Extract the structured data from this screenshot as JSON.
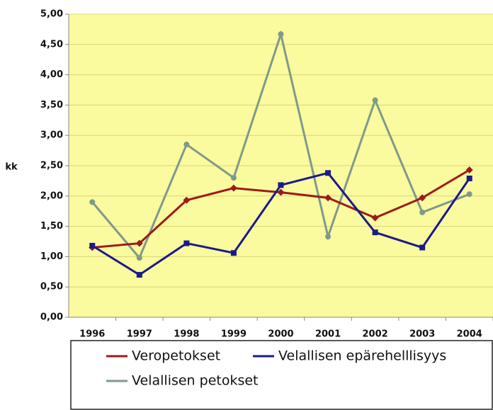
{
  "chart_data": {
    "type": "line",
    "y_label": "kk",
    "categories": [
      "1996",
      "1997",
      "1998",
      "1999",
      "2000",
      "2001",
      "2002",
      "2003",
      "2004"
    ],
    "series": [
      {
        "name": "Veropetokset",
        "color": "#9b1b1b",
        "values": [
          1.15,
          1.22,
          1.93,
          2.13,
          2.06,
          1.97,
          1.64,
          1.97,
          2.43
        ]
      },
      {
        "name": "Velallisen epärehelllisyys",
        "color": "#1a1a8c",
        "values": [
          1.18,
          0.7,
          1.22,
          1.06,
          2.18,
          2.38,
          1.4,
          1.15,
          2.29
        ]
      },
      {
        "name": "Velallisen petokset",
        "color": "#7f9a8a",
        "values": [
          1.9,
          0.98,
          2.85,
          2.3,
          4.67,
          1.33,
          3.58,
          1.73,
          2.03
        ]
      }
    ],
    "ylim": [
      0,
      5
    ],
    "yticks": [
      {
        "value": 0,
        "label": "0,00"
      },
      {
        "value": 0.5,
        "label": "0,50"
      },
      {
        "value": 1,
        "label": "1,00"
      },
      {
        "value": 1.5,
        "label": "1,50"
      },
      {
        "value": 2,
        "label": "2,00"
      },
      {
        "value": 2.5,
        "label": "2,50"
      },
      {
        "value": 3,
        "label": "3,00"
      },
      {
        "value": 3.5,
        "label": "3,50"
      },
      {
        "value": 4,
        "label": "4,00"
      },
      {
        "value": 4.5,
        "label": "4,50"
      },
      {
        "value": 5,
        "label": "5,00"
      }
    ],
    "grid": true,
    "legend": "bottom"
  }
}
